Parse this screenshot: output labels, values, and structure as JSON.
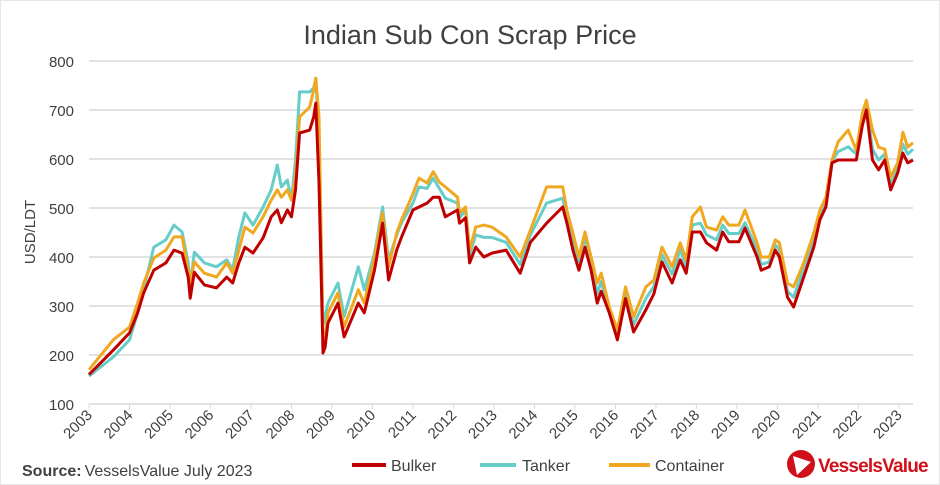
{
  "chart_data": {
    "type": "line",
    "title": "Indian Sub Con Scrap Price",
    "xlabel": "",
    "ylabel": "USD/LDT",
    "ylim": [
      100,
      800
    ],
    "xlim": [
      2003,
      2023.35
    ],
    "yticks": [
      "100",
      "200",
      "300",
      "400",
      "500",
      "600",
      "700",
      "800"
    ],
    "xticks": [
      "2003",
      "2004",
      "2005",
      "2006",
      "2007",
      "2008",
      "2009",
      "2010",
      "2011",
      "2012",
      "2013",
      "2014",
      "2015",
      "2016",
      "2017",
      "2018",
      "2019",
      "2020",
      "2021",
      "2022",
      "2023"
    ],
    "grid": "horizontal",
    "legend_position": "bottom",
    "source": {
      "label": "Source:",
      "text": "VesselsValue July 2023"
    },
    "logo_text": "VesselsValue",
    "x": [
      2003.0,
      2003.6,
      2004.0,
      2004.2,
      2004.35,
      2004.6,
      2004.9,
      2005.1,
      2005.3,
      2005.45,
      2005.5,
      2005.6,
      2005.85,
      2006.15,
      2006.4,
      2006.55,
      2006.7,
      2006.85,
      2007.05,
      2007.3,
      2007.5,
      2007.65,
      2007.75,
      2007.9,
      2008.0,
      2008.1,
      2008.2,
      2008.45,
      2008.55,
      2008.6,
      2008.68,
      2008.78,
      2008.83,
      2008.9,
      2009.15,
      2009.3,
      2009.65,
      2009.8,
      2010.05,
      2010.25,
      2010.4,
      2010.6,
      2010.72,
      2011.0,
      2011.15,
      2011.35,
      2011.5,
      2011.65,
      2011.8,
      2012.1,
      2012.15,
      2012.3,
      2012.4,
      2012.55,
      2012.75,
      2012.95,
      2013.3,
      2013.65,
      2013.9,
      2014.3,
      2014.7,
      2014.8,
      2014.95,
      2015.1,
      2015.25,
      2015.4,
      2015.55,
      2015.65,
      2015.85,
      2016.05,
      2016.25,
      2016.45,
      2016.75,
      2016.95,
      2017.15,
      2017.4,
      2017.6,
      2017.75,
      2017.9,
      2018.1,
      2018.25,
      2018.5,
      2018.65,
      2018.8,
      2019.05,
      2019.2,
      2019.5,
      2019.6,
      2019.8,
      2019.95,
      2020.05,
      2020.25,
      2020.4,
      2020.65,
      2020.9,
      2021.05,
      2021.2,
      2021.35,
      2021.5,
      2021.75,
      2021.95,
      2022.1,
      2022.2,
      2022.35,
      2022.5,
      2022.65,
      2022.8,
      2022.97,
      2023.1,
      2023.22,
      2023.35
    ],
    "series": [
      {
        "name": "Bulker",
        "color": "#c00000",
        "values": [
          160,
          210,
          245,
          286,
          327,
          373,
          388,
          414,
          408,
          359,
          316,
          369,
          343,
          337,
          359,
          347,
          388,
          420,
          408,
          439,
          482,
          496,
          470,
          496,
          482,
          537,
          653,
          659,
          686,
          714,
          551,
          204,
          216,
          265,
          306,
          237,
          306,
          286,
          373,
          469,
          353,
          414,
          441,
          496,
          502,
          510,
          522,
          522,
          482,
          496,
          469,
          480,
          388,
          420,
          400,
          408,
          414,
          367,
          430,
          469,
          502,
          470,
          414,
          373,
          420,
          373,
          306,
          330,
          286,
          231,
          315,
          247,
          292,
          325,
          390,
          347,
          394,
          367,
          451,
          451,
          429,
          414,
          451,
          431,
          431,
          459,
          400,
          373,
          380,
          414,
          400,
          318,
          298,
          359,
          420,
          476,
          502,
          592,
          598,
          598,
          598,
          669,
          700,
          598,
          578,
          598,
          537,
          571,
          612,
          592,
          598
        ]
      },
      {
        "name": "Tanker",
        "color": "#66cdc9",
        "values": [
          157,
          196,
          231,
          286,
          335,
          420,
          435,
          465,
          451,
          388,
          340,
          410,
          388,
          380,
          394,
          375,
          441,
          490,
          465,
          502,
          537,
          588,
          543,
          557,
          516,
          598,
          737,
          737,
          745,
          765,
          640,
          260,
          278,
          306,
          347,
          278,
          380,
          333,
          408,
          502,
          394,
          445,
          470,
          510,
          543,
          540,
          561,
          540,
          520,
          510,
          480,
          495,
          405,
          445,
          440,
          440,
          430,
          385,
          445,
          510,
          520,
          485,
          430,
          390,
          440,
          390,
          325,
          350,
          292,
          240,
          330,
          262,
          315,
          340,
          405,
          365,
          415,
          380,
          465,
          469,
          445,
          435,
          465,
          448,
          448,
          470,
          415,
          385,
          390,
          425,
          415,
          330,
          318,
          375,
          435,
          485,
          510,
          595,
          615,
          625,
          610,
          680,
          710,
          620,
          598,
          610,
          548,
          580,
          630,
          610,
          620
        ]
      },
      {
        "name": "Container",
        "color": "#f0a820",
        "values": [
          170,
          231,
          257,
          306,
          347,
          398,
          414,
          441,
          441,
          373,
          347,
          390,
          367,
          359,
          388,
          367,
          414,
          461,
          449,
          482,
          516,
          537,
          522,
          537,
          516,
          563,
          686,
          706,
          741,
          765,
          686,
          237,
          231,
          286,
          327,
          257,
          333,
          306,
          400,
          490,
          380,
          449,
          476,
          529,
          561,
          551,
          574,
          553,
          543,
          522,
          490,
          502,
          414,
          461,
          465,
          461,
          441,
          400,
          455,
          543,
          543,
          496,
          449,
          400,
          451,
          400,
          347,
          367,
          298,
          251,
          339,
          278,
          339,
          353,
          420,
          380,
          429,
          394,
          482,
          502,
          461,
          455,
          482,
          465,
          465,
          496,
          429,
          400,
          400,
          435,
          429,
          347,
          339,
          388,
          449,
          496,
          522,
          598,
          635,
          659,
          618,
          694,
          720,
          659,
          624,
          620,
          563,
          592,
          655,
          624,
          633
        ]
      }
    ]
  }
}
